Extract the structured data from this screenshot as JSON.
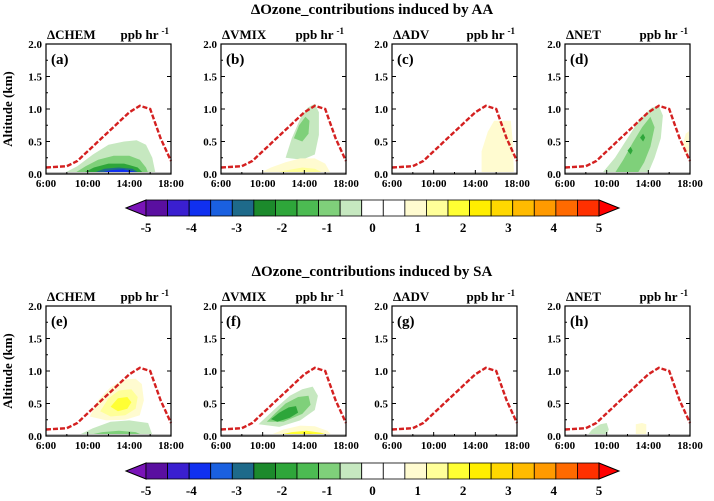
{
  "figure": {
    "row_titles": [
      "ΔOzone_contributions induced by AA",
      "ΔOzone_contributions induced by SA"
    ],
    "unit": "ppb hr",
    "unit_exp": "-1",
    "ylabel": "Altitude (km)",
    "ylim": [
      0.0,
      2.0
    ],
    "yticks": [
      "0.0",
      "0.5",
      "1.0",
      "1.5",
      "2.0"
    ],
    "xticks": [
      "6:00",
      "10:00",
      "14:00",
      "18:00"
    ],
    "colorbar": {
      "ticks": [
        "-5",
        "-4",
        "-3",
        "-2",
        "-1",
        "0",
        "1",
        "2",
        "3",
        "4",
        "5"
      ],
      "colors": [
        "#5a0fa0",
        "#3a1fd0",
        "#1030f0",
        "#1a60e0",
        "#1e6a8a",
        "#1c8a2c",
        "#2ea63a",
        "#4cbb52",
        "#7fd07a",
        "#c6e8c0",
        "#ffffff",
        "#ffffff",
        "#fffbd0",
        "#ffff99",
        "#ffff33",
        "#ffee00",
        "#ffd800",
        "#ffbb00",
        "#ff9a00",
        "#ff6a00",
        "#ff3000"
      ],
      "arrow_left_color": "#7a14b8",
      "arrow_right_color": "#ff0000"
    },
    "boundary_layer_color": "#d42020"
  },
  "chart_data": [
    {
      "panel": "(a)",
      "title": "ΔCHEM",
      "type": "contour",
      "xlabel": "",
      "ylabel": "Altitude (km)",
      "x": [
        "6:00",
        "18:00"
      ],
      "ylim": [
        0,
        2
      ],
      "pbl_height": {
        "x": [
          "6:00",
          "8:00",
          "9:00",
          "10:00",
          "11:00",
          "12:00",
          "13:00",
          "14:00",
          "15:00",
          "16:00",
          "17:00",
          "18:00"
        ],
        "y": [
          0.1,
          0.12,
          0.2,
          0.35,
          0.5,
          0.65,
          0.8,
          0.95,
          1.05,
          1.0,
          0.55,
          0.2
        ]
      },
      "features": [
        {
          "center_time": "13:00",
          "center_alt": 0.45,
          "value_range": [
            -1,
            0
          ],
          "color": "#c6e8c0"
        },
        {
          "center_time": "13:00",
          "center_alt": 0.25,
          "value_range": [
            -2,
            -1
          ],
          "color": "#7fd07a"
        },
        {
          "center_time": "13:00",
          "center_alt": 0.12,
          "value_range": [
            -3,
            -2
          ],
          "color": "#2ea63a"
        },
        {
          "center_time": "13:00",
          "center_alt": 0.06,
          "value_range": [
            -4,
            -3
          ],
          "color": "#1e6a8a"
        },
        {
          "center_time": "13:00",
          "center_alt": 0.04,
          "value_range": [
            -5,
            -4
          ],
          "color": "#1030f0"
        }
      ]
    },
    {
      "panel": "(b)",
      "title": "ΔVMIX",
      "type": "contour",
      "xlabel": "",
      "ylabel": "",
      "x": [
        "6:00",
        "18:00"
      ],
      "ylim": [
        0,
        2
      ],
      "features": [
        {
          "center_time": "14:30",
          "center_alt": 0.65,
          "value_range": [
            -1,
            0
          ],
          "color": "#c6e8c0"
        },
        {
          "center_time": "14:00",
          "center_alt": 0.7,
          "value_range": [
            -2,
            -1
          ],
          "color": "#7fd07a"
        },
        {
          "center_time": "14:00",
          "center_alt": 0.15,
          "value_range": [
            0,
            1
          ],
          "color": "#fffbd0"
        },
        {
          "center_time": "14:00",
          "center_alt": 0.06,
          "value_range": [
            1,
            2
          ],
          "color": "#ffff99"
        }
      ]
    },
    {
      "panel": "(c)",
      "title": "ΔADV",
      "type": "contour",
      "xlabel": "",
      "ylabel": "",
      "x": [
        "6:00",
        "18:00"
      ],
      "ylim": [
        0,
        2
      ],
      "features": [
        {
          "center_time": "16:00",
          "center_alt": 0.4,
          "value_range": [
            0,
            1
          ],
          "color": "#fffbd0"
        }
      ]
    },
    {
      "panel": "(d)",
      "title": "ΔNET",
      "type": "contour",
      "xlabel": "",
      "ylabel": "",
      "x": [
        "6:00",
        "18:00"
      ],
      "ylim": [
        0,
        2
      ],
      "features": [
        {
          "center_time": "13:00",
          "center_alt": 0.5,
          "value_range": [
            -1,
            0
          ],
          "color": "#c6e8c0"
        },
        {
          "center_time": "13:00",
          "center_alt": 0.55,
          "value_range": [
            -2,
            -1
          ],
          "color": "#7fd07a"
        },
        {
          "center_time": "17:45",
          "center_alt": 0.5,
          "value_range": [
            0,
            1
          ],
          "color": "#fffbd0"
        }
      ]
    },
    {
      "panel": "(e)",
      "title": "ΔCHEM",
      "type": "contour",
      "xlabel": "",
      "ylabel": "Altitude (km)",
      "x": [
        "6:00",
        "18:00"
      ],
      "ylim": [
        0,
        2
      ],
      "features": [
        {
          "center_time": "13:00",
          "center_alt": 0.5,
          "value_range": [
            0,
            1
          ],
          "color": "#fffbd0"
        },
        {
          "center_time": "13:00",
          "center_alt": 0.5,
          "value_range": [
            1,
            2
          ],
          "color": "#ffff99"
        },
        {
          "center_time": "13:00",
          "center_alt": 0.5,
          "value_range": [
            2,
            3
          ],
          "color": "#ffff33"
        },
        {
          "center_time": "13:00",
          "center_alt": 0.08,
          "value_range": [
            -1,
            0
          ],
          "color": "#c6e8c0"
        },
        {
          "center_time": "13:00",
          "center_alt": 0.03,
          "value_range": [
            -3,
            -2
          ],
          "color": "#1e6a8a"
        }
      ]
    },
    {
      "panel": "(f)",
      "title": "ΔVMIX",
      "type": "contour",
      "xlabel": "",
      "ylabel": "",
      "x": [
        "6:00",
        "18:00"
      ],
      "ylim": [
        0,
        2
      ],
      "features": [
        {
          "center_time": "12:30",
          "center_alt": 0.4,
          "value_range": [
            -1,
            0
          ],
          "color": "#c6e8c0"
        },
        {
          "center_time": "12:00",
          "center_alt": 0.35,
          "value_range": [
            -2,
            -1
          ],
          "color": "#7fd07a"
        },
        {
          "center_time": "11:30",
          "center_alt": 0.3,
          "value_range": [
            -3,
            -2
          ],
          "color": "#2ea63a"
        },
        {
          "center_time": "14:00",
          "center_alt": 0.08,
          "value_range": [
            0,
            1
          ],
          "color": "#ffff99"
        },
        {
          "center_time": "14:00",
          "center_alt": 0.03,
          "value_range": [
            1,
            3
          ],
          "color": "#ffbb00"
        }
      ]
    },
    {
      "panel": "(g)",
      "title": "ΔADV",
      "type": "contour",
      "xlabel": "",
      "ylabel": "",
      "x": [
        "6:00",
        "18:00"
      ],
      "ylim": [
        0,
        2
      ],
      "features": []
    },
    {
      "panel": "(h)",
      "title": "ΔNET",
      "type": "contour",
      "xlabel": "",
      "ylabel": "",
      "x": [
        "6:00",
        "18:00"
      ],
      "ylim": [
        0,
        2
      ],
      "features": [
        {
          "center_time": "9:30",
          "center_alt": 0.15,
          "value_range": [
            -1,
            0
          ],
          "color": "#c6e8c0"
        },
        {
          "center_time": "13:15",
          "center_alt": 0.15,
          "value_range": [
            0,
            1
          ],
          "color": "#fffbd0"
        }
      ]
    }
  ]
}
